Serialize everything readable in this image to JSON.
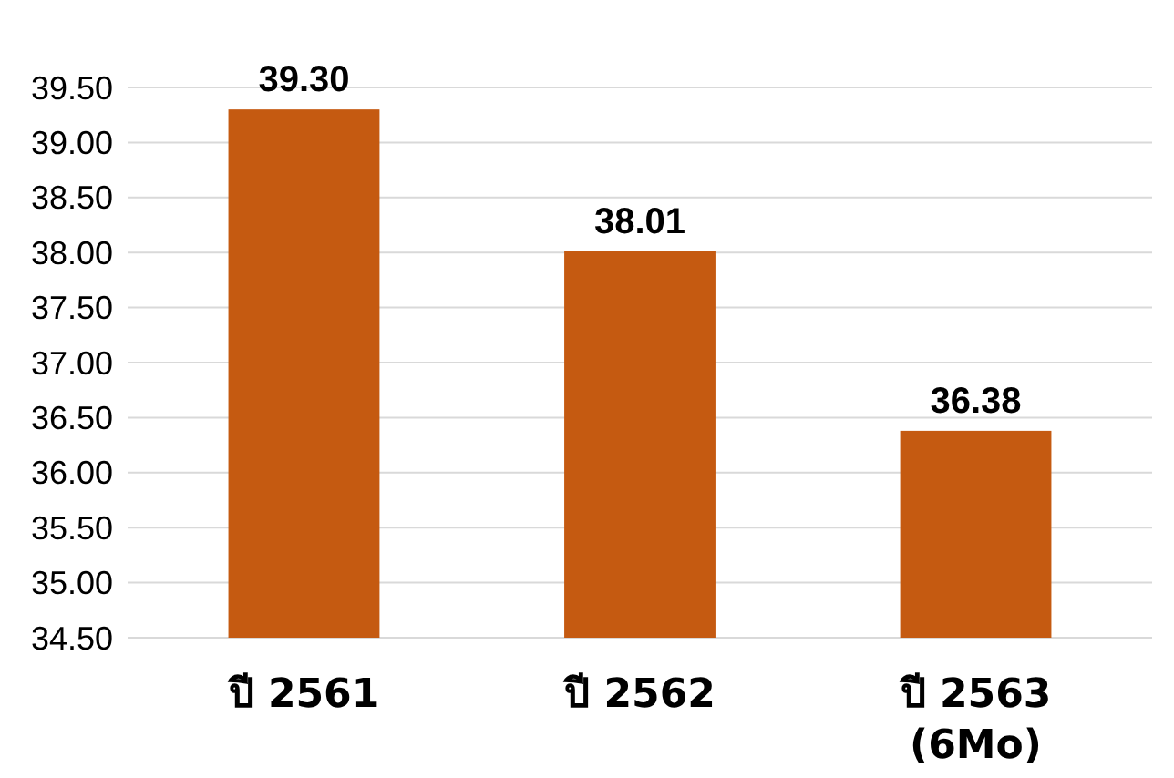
{
  "chart_data": {
    "type": "bar",
    "categories": [
      "ปี 2561",
      "ปี 2562",
      "ปี 2563\n(6Mo)"
    ],
    "values": [
      39.3,
      38.01,
      36.38
    ],
    "value_labels": [
      "39.30",
      "38.01",
      "36.38"
    ],
    "color": "#c55a11",
    "ylim": [
      34.5,
      39.5
    ],
    "yticks": [
      {
        "value": 34.5,
        "label": "34.50"
      },
      {
        "value": 35,
        "label": "35.00"
      },
      {
        "value": 35.5,
        "label": "35.50"
      },
      {
        "value": 36,
        "label": "36.00"
      },
      {
        "value": 36.5,
        "label": "36.50"
      },
      {
        "value": 37,
        "label": "37.00"
      },
      {
        "value": 37.5,
        "label": "37.50"
      },
      {
        "value": 38,
        "label": "38.00"
      },
      {
        "value": 38.5,
        "label": "38.50"
      },
      {
        "value": 39,
        "label": "39.00"
      },
      {
        "value": 39.5,
        "label": "39.50"
      }
    ],
    "grid": "y"
  }
}
